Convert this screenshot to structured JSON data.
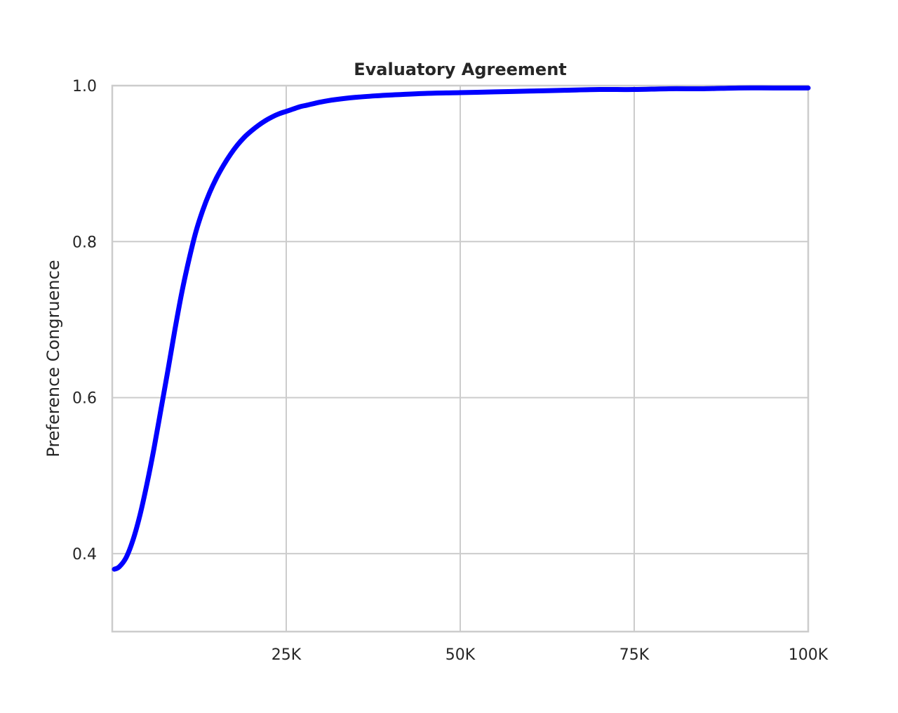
{
  "chart_data": {
    "type": "line",
    "title": "Evaluatory Agreement",
    "xlabel": "",
    "ylabel": "Preference Congruence",
    "xlim": [
      0,
      100000
    ],
    "ylim": [
      0.3,
      1.0
    ],
    "xticks": [
      {
        "value": 25000,
        "label": "25K"
      },
      {
        "value": 50000,
        "label": "50K"
      },
      {
        "value": 75000,
        "label": "75K"
      },
      {
        "value": 100000,
        "label": "100K"
      }
    ],
    "yticks": [
      {
        "value": 0.4,
        "label": "0.4"
      },
      {
        "value": 0.6,
        "label": "0.6"
      },
      {
        "value": 0.8,
        "label": "0.8"
      },
      {
        "value": 1.0,
        "label": "1.0"
      }
    ],
    "grid": true,
    "legend": "none",
    "series": [
      {
        "color": "#0000ff",
        "x": [
          300,
          1000,
          2000,
          3000,
          4000,
          5000,
          6000,
          7000,
          8000,
          9000,
          10000,
          11000,
          12000,
          13000,
          14000,
          15000,
          16000,
          17000,
          18000,
          19000,
          20000,
          21000,
          22000,
          23000,
          24000,
          25000,
          26000,
          27000,
          28000,
          30000,
          32000,
          35000,
          38000,
          40000,
          45000,
          50000,
          55000,
          60000,
          65000,
          70000,
          75000,
          80000,
          85000,
          90000,
          95000,
          100000
        ],
        "y": [
          0.38,
          0.383,
          0.395,
          0.418,
          0.45,
          0.49,
          0.535,
          0.585,
          0.635,
          0.687,
          0.735,
          0.776,
          0.812,
          0.84,
          0.863,
          0.882,
          0.898,
          0.912,
          0.924,
          0.934,
          0.942,
          0.949,
          0.955,
          0.96,
          0.964,
          0.967,
          0.97,
          0.973,
          0.975,
          0.979,
          0.982,
          0.985,
          0.987,
          0.988,
          0.99,
          0.991,
          0.992,
          0.993,
          0.994,
          0.995,
          0.995,
          0.996,
          0.996,
          0.997,
          0.997,
          0.997
        ]
      }
    ]
  }
}
